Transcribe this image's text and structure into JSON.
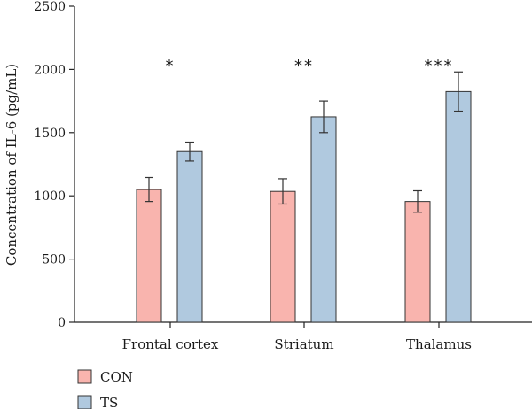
{
  "chart_data": {
    "type": "bar",
    "ylabel": "Concentration of IL-6 (pg/mL)",
    "xlabel": "",
    "ylim": [
      0,
      2500
    ],
    "yticks": [
      0,
      500,
      1000,
      1500,
      2000,
      2500
    ],
    "categories": [
      "Frontal cortex",
      "Striatum",
      "Thalamus"
    ],
    "series": [
      {
        "name": "CON",
        "color": "#f9b4ae",
        "values": [
          1050,
          1035,
          955
        ],
        "errors": [
          95,
          100,
          85
        ]
      },
      {
        "name": "TS",
        "color": "#b0c9df",
        "values": [
          1350,
          1625,
          1825
        ],
        "errors": [
          75,
          125,
          155
        ]
      }
    ],
    "annotations": [
      "*",
      "**",
      "***"
    ],
    "legend_position": "bottom-left",
    "grid": false
  }
}
